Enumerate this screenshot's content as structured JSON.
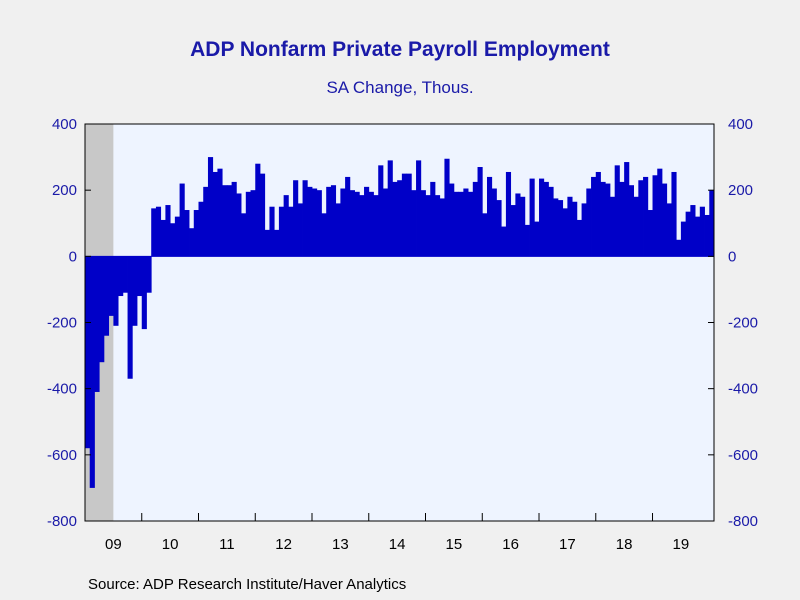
{
  "colors": {
    "bar": "#0000c8",
    "plot_bg": "#eef4ff",
    "recession": "#c8c8c8",
    "text": "#1a1aa8"
  },
  "source": "Source:  ADP Research Institute/Haver Analytics",
  "chart_data": {
    "type": "bar",
    "title": "ADP Nonfarm Private Payroll Employment",
    "subtitle": "SA Change, Thous.",
    "xlabel": "",
    "ylabel": "",
    "ylim": [
      -800,
      400
    ],
    "yticks": [
      400,
      200,
      0,
      -200,
      -400,
      -600,
      -800
    ],
    "year_labels": [
      "09",
      "10",
      "11",
      "12",
      "13",
      "14",
      "15",
      "16",
      "17",
      "18",
      "19"
    ],
    "recession_shading": [
      "2009-01",
      "2009-06"
    ],
    "grid": false,
    "start_month": "2009-01",
    "values": [
      -580,
      -700,
      -410,
      -320,
      -240,
      -180,
      -210,
      -120,
      -110,
      -370,
      -210,
      -120,
      -220,
      -110,
      145,
      150,
      110,
      155,
      100,
      120,
      220,
      140,
      85,
      140,
      165,
      210,
      300,
      255,
      265,
      215,
      215,
      225,
      190,
      130,
      195,
      200,
      280,
      250,
      80,
      150,
      80,
      150,
      185,
      150,
      230,
      160,
      230,
      210,
      205,
      200,
      130,
      210,
      215,
      160,
      205,
      240,
      200,
      195,
      185,
      210,
      195,
      185,
      275,
      205,
      290,
      225,
      230,
      250,
      250,
      200,
      290,
      200,
      185,
      225,
      185,
      175,
      295,
      220,
      195,
      195,
      205,
      195,
      225,
      270,
      130,
      240,
      205,
      170,
      90,
      255,
      155,
      190,
      180,
      95,
      235,
      105,
      235,
      225,
      210,
      175,
      170,
      145,
      180,
      165,
      110,
      160,
      205,
      240,
      255,
      225,
      220,
      180,
      275,
      225,
      285,
      215,
      180,
      230,
      240,
      140,
      245,
      265,
      220,
      160,
      255,
      50,
      105,
      135,
      155,
      120,
      150,
      125,
      200
    ]
  }
}
